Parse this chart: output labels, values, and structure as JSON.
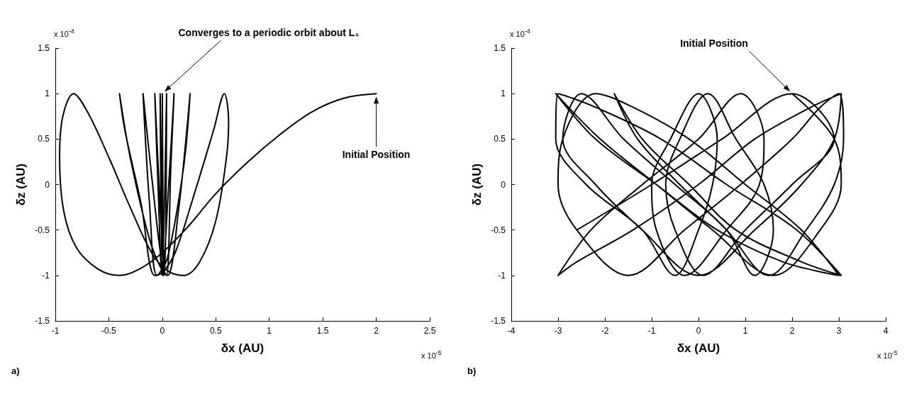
{
  "chart_data": [
    {
      "type": "line",
      "xlabel": "δx (AU)",
      "ylabel": "δz (AU)",
      "xlim": [
        -1,
        2.5
      ],
      "xticks": [
        -1,
        -0.5,
        0,
        0.5,
        1,
        1.5,
        2,
        2.5
      ],
      "ylim": [
        -1.5,
        1.5
      ],
      "yticks": [
        -1.5,
        -1,
        -0.5,
        0,
        0.5,
        1,
        1.5
      ],
      "line_style": "solid",
      "annotations": [
        "a)",
        "x 10$^{-4}$",
        "x 10$^{-5}$",
        "Converges to a periodic orbit about L₁",
        "Initial Position"
      ],
      "series": [
        {
          "color": "#000000",
          "x": [
            2,
            1.7,
            1.4,
            1.1,
            0.8,
            0.5,
            0.25,
            0,
            -0.2,
            -0.4,
            -0.6,
            -0.8,
            -0.92,
            -0.96,
            -0.93,
            -0.83,
            -0.7,
            -0.5,
            -0.3,
            -0.1,
            0.05,
            0.2,
            0.35,
            0.5,
            0.6,
            0.62,
            0.58,
            0.48,
            0.3,
            0.12,
            0,
            -0.07,
            -0.2,
            -0.35,
            -0.4,
            -0.3,
            -0.12,
            0,
            0.05,
            0.15,
            0.26,
            0.2,
            0.05,
            -0.05,
            -0.12,
            -0.18,
            -0.1,
            0,
            0.04,
            0.08,
            0.11,
            0.06,
            0,
            -0.04,
            -0.07,
            -0.03,
            0.02,
            0.04,
            0,
            -0.02,
            0.01,
            0
          ],
          "values": [
            1,
            0.95,
            0.8,
            0.55,
            0.25,
            -0.1,
            -0.45,
            -0.75,
            -0.92,
            -1,
            -0.93,
            -0.7,
            -0.3,
            0.3,
            0.75,
            1,
            0.8,
            0.3,
            -0.25,
            -0.75,
            -0.95,
            -1,
            -0.85,
            -0.4,
            0.3,
            0.7,
            1,
            0.6,
            -0.1,
            -0.75,
            -0.97,
            -1,
            -0.2,
            0.6,
            1,
            0.3,
            -0.6,
            -0.95,
            -1,
            -0.3,
            1,
            0.2,
            -0.8,
            -1,
            -0.2,
            1,
            0.1,
            -0.9,
            -1,
            0.2,
            1,
            0,
            -1,
            0,
            1,
            0,
            -1,
            1,
            -1,
            1,
            -1,
            1
          ]
        }
      ]
    },
    {
      "type": "line",
      "xlabel": "δx (AU)",
      "ylabel": "δz (AU)",
      "xlim": [
        -4,
        4
      ],
      "xticks": [
        -4,
        -3,
        -2,
        -1,
        0,
        1,
        2,
        3,
        4
      ],
      "ylim": [
        -1.5,
        1.5
      ],
      "yticks": [
        -1.5,
        -1,
        -0.5,
        0,
        0.5,
        1,
        1.5
      ],
      "line_style": "solid",
      "annotations": [
        "b)",
        "x 10$^{-4}$",
        "x 10$^{-5}$",
        "Initial Position"
      ],
      "series": [
        {
          "color": "#000000",
          "x": [
            2,
            2.9,
            3.05,
            2.6,
            1.6,
            0.3,
            -0.9,
            -2.1,
            -3.05,
            -2.2,
            -0.9,
            0.4,
            1.8,
            3.0,
            2.2,
            1.0,
            -0.2,
            -1.4,
            -2.2,
            -2.9,
            -3.0,
            -2.6,
            -1.5,
            -0.3,
            0.9,
            2.0,
            2.6,
            3.0,
            3.1,
            2.9,
            2.3,
            1.5,
            0.6,
            -0.4,
            -1.3,
            -1.8,
            -1.2,
            -0.2,
            0.8,
            2.2,
            3.05,
            2.1,
            0.6,
            -0.8,
            -2.2,
            -3.0,
            -3.05,
            -2.4,
            -1.2,
            -0.5,
            0,
            0.3,
            0.4,
            0,
            -0.6,
            -1.0,
            -0.9,
            -0.3,
            0.6,
            1.3,
            1.4,
            0.9,
            0,
            -1.2,
            -2.3,
            -3.0,
            -2.6,
            -1.4,
            0,
            1.2,
            2.4,
            3.05,
            2.9,
            2.2,
            1.2,
            0,
            -1.2,
            -2.2,
            -2.9,
            -2.5,
            -1.6,
            -0.5,
            0.6,
            1.2,
            1.6,
            1.4,
            0.8,
            0.2,
            -0.4,
            -0.7,
            -0.5,
            0.1,
            1.0,
            2.0,
            2.9,
            2.0,
            0.5,
            -1.0,
            -2.6
          ],
          "values": [
            1,
            0.5,
            0,
            -0.5,
            -1,
            -0.5,
            0,
            0.5,
            1,
            0.5,
            0,
            -0.5,
            -0.85,
            -1,
            -0.5,
            0,
            0.5,
            0.85,
            1,
            0.5,
            0,
            -0.5,
            -1,
            -0.5,
            0,
            0.5,
            0.85,
            1,
            0.5,
            0,
            -0.5,
            -1,
            -0.5,
            0,
            0.5,
            1,
            0.5,
            0,
            -0.5,
            -0.85,
            -1,
            -0.5,
            0,
            0.5,
            0.85,
            1,
            0.5,
            0,
            -0.5,
            -1,
            -0.5,
            0,
            0.5,
            1,
            0.5,
            0,
            -0.5,
            -1,
            -0.5,
            0,
            0.5,
            1,
            0.5,
            0,
            -0.5,
            -1,
            -0.85,
            -0.5,
            0,
            0.5,
            0.85,
            1,
            0.5,
            0,
            -0.5,
            -1,
            -0.5,
            0,
            0.5,
            1,
            0.5,
            0,
            -0.5,
            -1,
            -0.5,
            0,
            0.5,
            1,
            0.5,
            0,
            -0.5,
            -1,
            -0.5,
            0,
            0.5,
            1,
            0.5,
            0,
            -0.5
          ]
        }
      ]
    }
  ]
}
